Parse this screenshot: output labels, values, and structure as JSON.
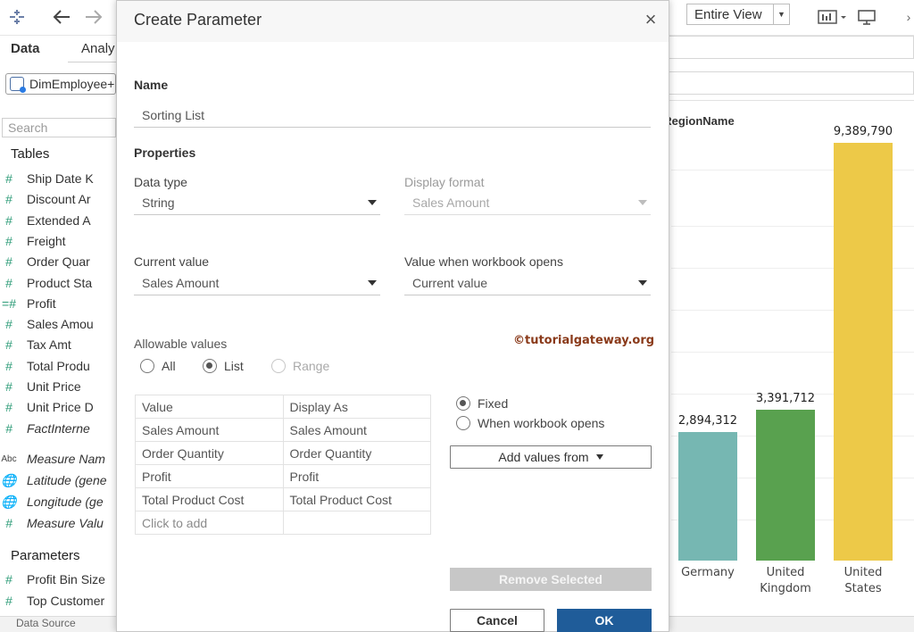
{
  "workspace": {
    "view_select": "Entire View",
    "left_pane": {
      "tabs": [
        "Data",
        "Analy"
      ],
      "data_source": "DimEmployee+",
      "search_placeholder": "Search",
      "tables_heading": "Tables",
      "fields": [
        {
          "icon": "#",
          "name": "Ship Date K",
          "italic": false
        },
        {
          "icon": "#",
          "name": "Discount Ar",
          "italic": false
        },
        {
          "icon": "#",
          "name": "Extended A",
          "italic": false
        },
        {
          "icon": "#",
          "name": "Freight",
          "italic": false
        },
        {
          "icon": "#",
          "name": "Order Quar",
          "italic": false
        },
        {
          "icon": "#",
          "name": "Product Sta",
          "italic": false
        },
        {
          "icon": "=#",
          "name": "Profit",
          "italic": false
        },
        {
          "icon": "#",
          "name": "Sales Amou",
          "italic": false
        },
        {
          "icon": "#",
          "name": "Tax Amt",
          "italic": false
        },
        {
          "icon": "#",
          "name": "Total Produ",
          "italic": false
        },
        {
          "icon": "#",
          "name": "Unit Price",
          "italic": false
        },
        {
          "icon": "#",
          "name": "Unit Price D",
          "italic": false
        },
        {
          "icon": "#",
          "name": "FactInterne",
          "italic": true
        }
      ],
      "generated_fields": [
        {
          "icon": "Abc",
          "name": "Measure Nam",
          "italic": true
        },
        {
          "icon": "globe",
          "name": "Latitude (gene",
          "italic": true
        },
        {
          "icon": "globe",
          "name": "Longitude (ge",
          "italic": true
        },
        {
          "icon": "#",
          "name": "Measure Valu",
          "italic": true
        }
      ],
      "parameters_heading": "Parameters",
      "parameters": [
        {
          "icon": "#",
          "name": "Profit Bin Size"
        },
        {
          "icon": "#",
          "name": "Top Customer"
        }
      ],
      "bottom_tab": "Data Source"
    },
    "chart_header": "yRegionName"
  },
  "chart_data": {
    "type": "bar",
    "categories": [
      "Germany",
      "United Kingdom",
      "United States"
    ],
    "values": [
      2894312,
      3391712,
      9389790
    ],
    "value_labels": [
      "2,894,312",
      "3,391,712",
      "9,389,790"
    ],
    "colors": [
      "#76b7b2",
      "#59a14f",
      "#edc948"
    ],
    "ylim": [
      0,
      10000000
    ]
  },
  "dialog": {
    "title": "Create Parameter",
    "name_label": "Name",
    "name_value": "Sorting List",
    "properties_label": "Properties",
    "data_type_label": "Data type",
    "data_type_value": "String",
    "display_format_label": "Display format",
    "display_format_value": "Sales Amount",
    "current_value_label": "Current value",
    "current_value_value": "Sales Amount",
    "workbook_opens_label": "Value when workbook opens",
    "workbook_opens_value": "Current value",
    "allowable_label": "Allowable values",
    "allowable_options": [
      "All",
      "List",
      "Range"
    ],
    "allowable_selected": "List",
    "watermark": "©tutorialgateway.org",
    "table": {
      "headers": [
        "Value",
        "Display As"
      ],
      "rows": [
        [
          "Sales Amount",
          "Sales Amount"
        ],
        [
          "Order Quantity",
          "Order Quantity"
        ],
        [
          "Profit",
          "Profit"
        ],
        [
          "Total Product Cost",
          "Total Product Cost"
        ],
        [
          "Click to add",
          ""
        ]
      ]
    },
    "list_source_options": [
      "Fixed",
      "When workbook opens"
    ],
    "list_source_selected": "Fixed",
    "add_values_label": "Add values from",
    "remove_selected_label": "Remove Selected",
    "cancel_label": "Cancel",
    "ok_label": "OK"
  }
}
